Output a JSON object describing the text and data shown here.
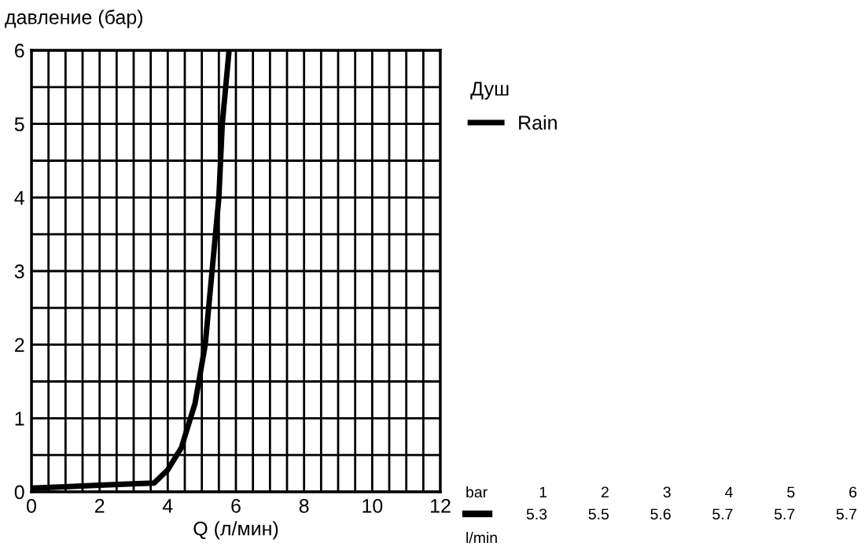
{
  "chart_data": {
    "type": "line",
    "ylabel": "давление (бар)",
    "xlabel": "Q (л/мин)",
    "legend_title": "Душ",
    "legend": "top right",
    "grid": true,
    "xlim": [
      0,
      12
    ],
    "ylim": [
      0,
      6
    ],
    "xticks": [
      0,
      {
        "value": 0.5,
        "label": null
      },
      {
        "value": 1,
        "label": null
      },
      {
        "value": 1.5,
        "label": null
      },
      2,
      {
        "value": 2.5,
        "label": null
      },
      {
        "value": 3,
        "label": null
      },
      {
        "value": 3.5,
        "label": null
      },
      4,
      {
        "value": 4.5,
        "label": null
      },
      {
        "value": 5,
        "label": null
      },
      {
        "value": 5.5,
        "label": null
      },
      6,
      {
        "value": 6.5,
        "label": null
      },
      {
        "value": 7,
        "label": null
      },
      {
        "value": 7.5,
        "label": null
      },
      8,
      {
        "value": 8.5,
        "label": null
      },
      {
        "value": 9,
        "label": null
      },
      {
        "value": 9.5,
        "label": null
      },
      10,
      {
        "value": 10.5,
        "label": null
      },
      {
        "value": 11,
        "label": null
      },
      {
        "value": 11.5,
        "label": null
      },
      12
    ],
    "yticks": [
      0,
      {
        "value": 0.5,
        "label": null
      },
      1,
      {
        "value": 1.5,
        "label": null
      },
      2,
      {
        "value": 2.5,
        "label": null
      },
      3,
      {
        "value": 3.5,
        "label": null
      },
      4,
      {
        "value": 4.5,
        "label": null
      },
      5,
      {
        "value": 5.5,
        "label": null
      },
      6
    ],
    "series": [
      {
        "name": "Rain",
        "color": "#000000",
        "x": [
          0,
          1,
          2,
          3,
          3.6,
          4.0,
          4.4,
          4.8,
          5.1,
          5.3,
          5.5,
          5.6,
          5.8
        ],
        "values": [
          0.05,
          0.07,
          0.09,
          0.11,
          0.12,
          0.3,
          0.6,
          1.2,
          2.0,
          3.0,
          4.0,
          5.0,
          6.0
        ]
      }
    ],
    "annotations": [
      "bar",
      "1",
      "2",
      "3",
      "4",
      "5",
      "6",
      "5.3",
      "5.5",
      "5.6",
      "5.7",
      "5.7",
      "5.7",
      "l/min"
    ]
  }
}
